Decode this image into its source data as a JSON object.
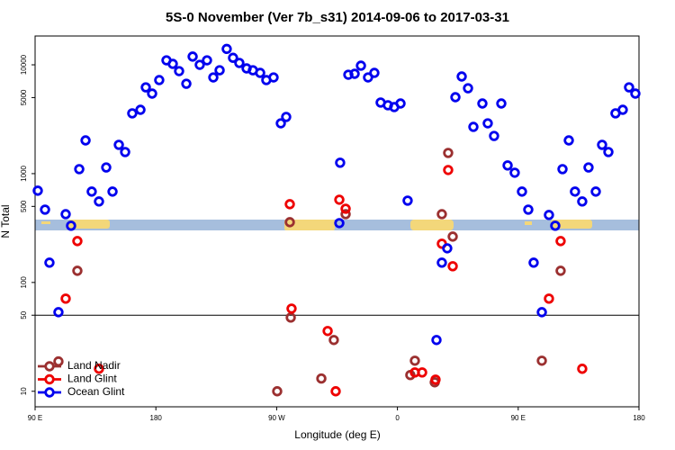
{
  "chart_data": {
    "type": "scatter",
    "title": "5S-0 November (Ver 7b_s31)   2014-09-06 to 2017-03-31",
    "x_label": "Longitude (deg E)",
    "y_label": "N Total",
    "xlim": [
      90,
      540
    ],
    "xticks": [
      {
        "value": 90,
        "label": "90 E"
      },
      {
        "value": 180,
        "label": "180"
      },
      {
        "value": 270,
        "label": "90 W"
      },
      {
        "value": 360,
        "label": "0"
      },
      {
        "value": 450,
        "label": "90 E"
      },
      {
        "value": 540,
        "label": "180"
      }
    ],
    "ylim": [
      7.2,
      18400
    ],
    "y_log": true,
    "yticks": [
      10,
      50,
      100,
      500,
      1000,
      5000,
      10000
    ],
    "reference_line": 50,
    "legend": "bottom left",
    "series": [
      {
        "name": "Land Nadir",
        "color": "#9b3030",
        "x": [
          107.4,
          121.5,
          270.4,
          279.8,
          280.5,
          303.3,
          312.6,
          321.4,
          369.6,
          373.0,
          387.8,
          393.1,
          397.8,
          401.2,
          467.6,
          481.6
        ],
        "values": [
          18.8,
          128,
          10,
          358,
          47.6,
          13.1,
          29.6,
          424,
          14.1,
          19.1,
          12.1,
          424,
          1550,
          264,
          19.1,
          128
        ]
      },
      {
        "name": "Land Glint",
        "color": "#ee0000",
        "x": [
          112.8,
          121.5,
          137.6,
          279.8,
          281.1,
          308.0,
          314.0,
          316.7,
          321.4,
          373.0,
          378.4,
          388.4,
          393.1,
          397.8,
          401.2,
          472.9,
          481.6,
          497.7
        ],
        "values": [
          71.0,
          240,
          16.1,
          524,
          57.5,
          35.8,
          10,
          576,
          476,
          14.9,
          14.9,
          12.8,
          227,
          1080,
          141,
          71.0,
          240,
          16.1
        ]
      },
      {
        "name": "Ocean Glint",
        "color": "#0000ee",
        "x": [
          92.0,
          97.4,
          100.7,
          107.4,
          112.8,
          116.8,
          122.9,
          127.6,
          132.2,
          137.6,
          143.0,
          147.7,
          152.4,
          157.1,
          162.4,
          168.5,
          172.5,
          177.2,
          182.5,
          187.9,
          192.6,
          197.3,
          202.7,
          207.4,
          212.7,
          218.1,
          222.8,
          227.5,
          232.8,
          237.5,
          242.2,
          247.6,
          252.3,
          257.7,
          262.3,
          267.7,
          273.1,
          277.1,
          316.7,
          317.3,
          323.4,
          328.1,
          332.8,
          338.1,
          342.8,
          347.5,
          352.9,
          357.6,
          362.3,
          367.6,
          389.1,
          393.1,
          397.1,
          403.2,
          407.9,
          412.6,
          416.6,
          423.3,
          427.3,
          432.0,
          437.4,
          442.1,
          447.4,
          452.8,
          457.5,
          461.5,
          467.6,
          472.9,
          477.6,
          483.0,
          487.7,
          492.3,
          497.7,
          502.4,
          507.8,
          512.5,
          517.2,
          522.5,
          527.9,
          532.6,
          537.3
        ],
        "values": [
          697,
          467,
          152,
          53.3,
          424,
          332,
          1100,
          2020,
          684,
          555,
          1140,
          684,
          1840,
          1580,
          3580,
          3860,
          6210,
          5440,
          7240,
          11000,
          10200,
          8750,
          6700,
          11900,
          10000,
          11000,
          7660,
          8910,
          14000,
          11600,
          10400,
          9270,
          8910,
          8430,
          7240,
          7660,
          2900,
          3320,
          351,
          1260,
          8110,
          8270,
          9820,
          7660,
          8430,
          4500,
          4250,
          4090,
          4410,
          565,
          29.6,
          152,
          206,
          5040,
          7810,
          6090,
          2690,
          4410,
          2900,
          2220,
          4410,
          1190,
          1020,
          684,
          467,
          152,
          53.3,
          417,
          332,
          1100,
          2020,
          684,
          555,
          1140,
          684,
          1840,
          1580,
          3580,
          3860,
          6210,
          5440
        ]
      }
    ]
  }
}
